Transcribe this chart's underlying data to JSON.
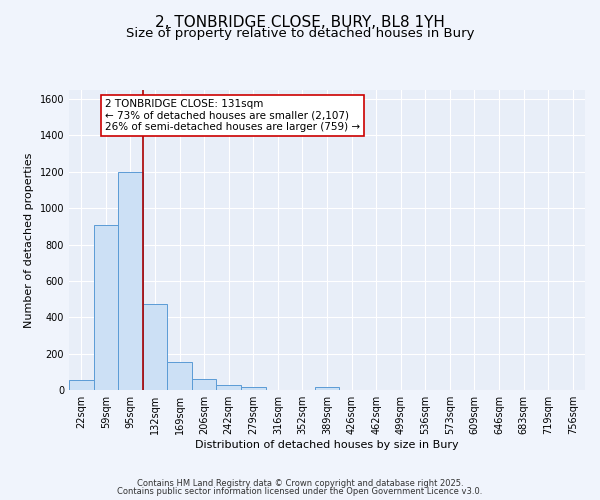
{
  "title": "2, TONBRIDGE CLOSE, BURY, BL8 1YH",
  "subtitle": "Size of property relative to detached houses in Bury",
  "xlabel": "Distribution of detached houses by size in Bury",
  "ylabel": "Number of detached properties",
  "bar_color": "#cce0f5",
  "bar_edge_color": "#5b9bd5",
  "background_color": "#e8eef8",
  "grid_color": "#ffffff",
  "categories": [
    "22sqm",
    "59sqm",
    "95sqm",
    "132sqm",
    "169sqm",
    "206sqm",
    "242sqm",
    "279sqm",
    "316sqm",
    "352sqm",
    "389sqm",
    "426sqm",
    "462sqm",
    "499sqm",
    "536sqm",
    "573sqm",
    "609sqm",
    "646sqm",
    "683sqm",
    "719sqm",
    "756sqm"
  ],
  "values": [
    55,
    910,
    1200,
    475,
    155,
    58,
    27,
    15,
    0,
    0,
    15,
    0,
    0,
    0,
    0,
    0,
    0,
    0,
    0,
    0,
    0
  ],
  "vline_bin_index": 3,
  "vline_color": "#aa0000",
  "ylim": [
    0,
    1650
  ],
  "yticks": [
    0,
    200,
    400,
    600,
    800,
    1000,
    1200,
    1400,
    1600
  ],
  "annotation_title": "2 TONBRIDGE CLOSE: 131sqm",
  "annotation_line1": "← 73% of detached houses are smaller (2,107)",
  "annotation_line2": "26% of semi-detached houses are larger (759) →",
  "annotation_box_color": "#ffffff",
  "annotation_box_edge": "#cc0000",
  "footer_line1": "Contains HM Land Registry data © Crown copyright and database right 2025.",
  "footer_line2": "Contains public sector information licensed under the Open Government Licence v3.0.",
  "title_fontsize": 11,
  "subtitle_fontsize": 9.5,
  "axis_label_fontsize": 8,
  "tick_fontsize": 7,
  "annotation_fontsize": 7.5,
  "footer_fontsize": 6
}
